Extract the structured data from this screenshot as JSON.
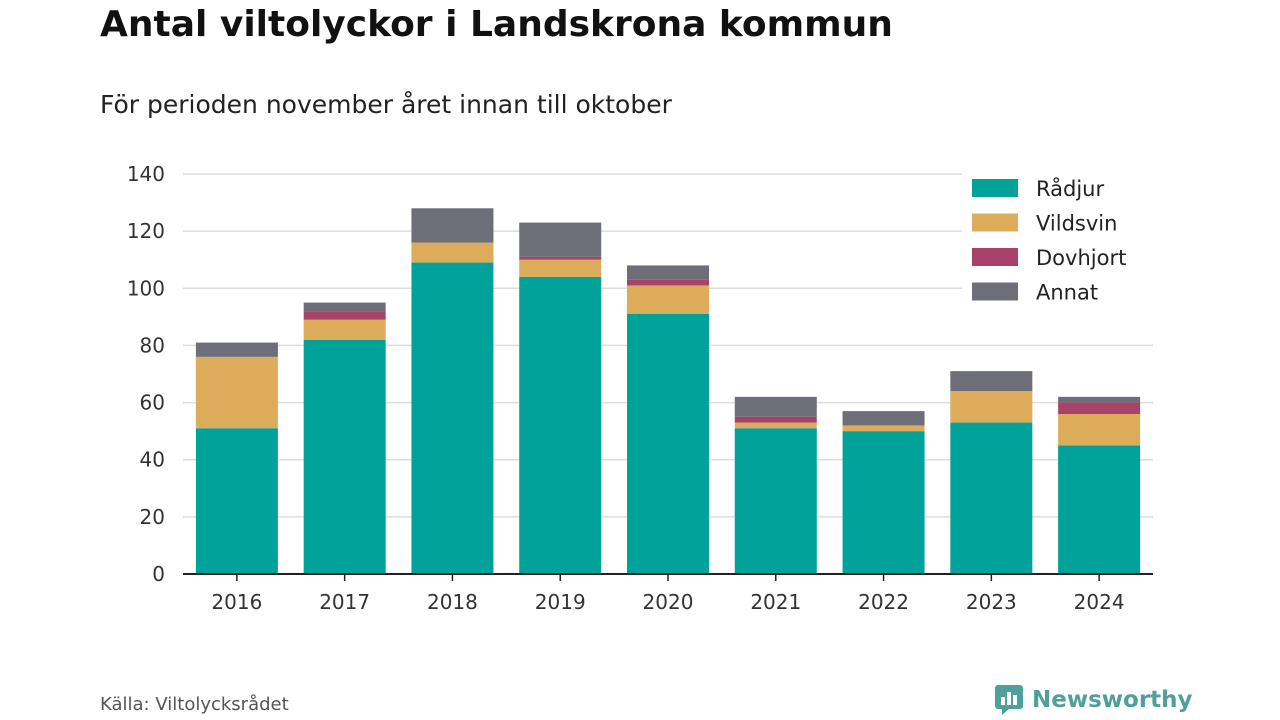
{
  "title": "Antal viltolyckor i Landskrona kommun",
  "subtitle": "För perioden november året innan till oktober",
  "source": "Källa: Viltolycksrådet",
  "brand": {
    "name": "Newsworthy",
    "icon": "newsworthy-logo-icon",
    "color": "#4fa09a"
  },
  "chart_data": {
    "type": "bar",
    "stacked": true,
    "categories": [
      "2016",
      "2017",
      "2018",
      "2019",
      "2020",
      "2021",
      "2022",
      "2023",
      "2024"
    ],
    "series": [
      {
        "name": "Rådjur",
        "color": "#00a29a",
        "values": [
          51,
          82,
          109,
          104,
          91,
          51,
          50,
          53,
          45
        ]
      },
      {
        "name": "Vildsvin",
        "color": "#dcac5a",
        "values": [
          25,
          7,
          7,
          6,
          10,
          2,
          2,
          11,
          11
        ]
      },
      {
        "name": "Dovhjort",
        "color": "#a8426a",
        "values": [
          0,
          3,
          0,
          1,
          2,
          2,
          0,
          0,
          4
        ]
      },
      {
        "name": "Annat",
        "color": "#6e6e78",
        "values": [
          5,
          3,
          12,
          12,
          5,
          7,
          5,
          7,
          2
        ]
      }
    ],
    "ylim": [
      0,
      140
    ],
    "yticks": [
      0,
      20,
      40,
      60,
      80,
      100,
      120,
      140
    ],
    "xlabel": "",
    "ylabel": "",
    "grid": true,
    "legend": "top-right"
  }
}
